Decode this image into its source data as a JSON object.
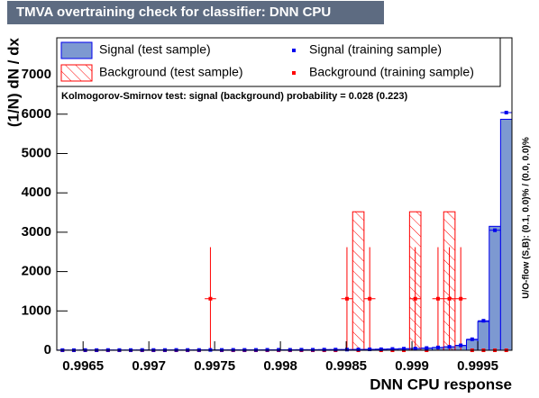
{
  "chart_data": {
    "type": "histogram",
    "title": "TMVA overtraining check for classifier: DNN CPU",
    "xlabel": "DNN CPU response",
    "ylabel": "(1/N) dN / dx",
    "annotation": "Kolmogorov-Smirnov test: signal (background) probability = 0.028 (0.223)",
    "side_note": "U/O-flow (S,B): (0.1, 0.0)% / (0.0, 0.0)%",
    "xlim": [
      0.9963,
      0.99976
    ],
    "ylim": [
      0,
      7940
    ],
    "xticks": [
      0.9965,
      0.997,
      0.9975,
      0.998,
      0.9985,
      0.999,
      0.9995
    ],
    "yticks": [
      0,
      1000,
      2000,
      3000,
      4000,
      5000,
      6000,
      7000
    ],
    "bins": [
      0.9963,
      0.9963865,
      0.996473,
      0.9965595,
      0.996646,
      0.9967325,
      0.996819,
      0.9969055,
      0.996992,
      0.9970785,
      0.997165,
      0.9972515,
      0.997338,
      0.9974245,
      0.997511,
      0.9975975,
      0.997684,
      0.9977705,
      0.997857,
      0.9979435,
      0.99803,
      0.9981165,
      0.998203,
      0.9982895,
      0.998376,
      0.9984625,
      0.998549,
      0.9986355,
      0.998722,
      0.9988085,
      0.998895,
      0.9989815,
      0.999068,
      0.9991545,
      0.999241,
      0.9993275,
      0.999414,
      0.9995005,
      0.999587,
      0.9996735,
      0.99976
    ],
    "series": [
      {
        "name": "Signal (test sample)",
        "style": "filled",
        "color": "#7d99d1",
        "line_color": "#0000ee",
        "values": [
          3,
          4,
          4,
          5,
          5,
          5,
          6,
          6,
          6,
          7,
          7,
          7,
          8,
          8,
          8,
          9,
          9,
          10,
          10,
          11,
          12,
          13,
          14,
          15,
          16,
          18,
          20,
          23,
          27,
          32,
          38,
          45,
          55,
          70,
          90,
          120,
          270,
          730,
          3150,
          5870
        ]
      },
      {
        "name": "Background (test sample)",
        "style": "hatched",
        "color": "#ff0000",
        "values": [
          0,
          0,
          0,
          0,
          0,
          0,
          0,
          0,
          0,
          0,
          0,
          0,
          0,
          0,
          0,
          0,
          0,
          0,
          0,
          0,
          0,
          0,
          0,
          0,
          0,
          0,
          3520,
          0,
          0,
          0,
          0,
          3520,
          0,
          0,
          3520,
          0,
          0,
          0,
          0,
          0
        ]
      },
      {
        "name": "Background (training sample)",
        "style": "markers",
        "color": "#ff0000",
        "values": [
          0,
          0,
          0,
          0,
          0,
          0,
          0,
          0,
          0,
          0,
          0,
          0,
          0,
          1310,
          0,
          0,
          0,
          0,
          0,
          0,
          0,
          0,
          0,
          0,
          0,
          1310,
          0,
          1310,
          0,
          0,
          0,
          1310,
          0,
          1310,
          1310,
          1310,
          0,
          0,
          0,
          0
        ],
        "errors": [
          0,
          0,
          0,
          0,
          0,
          0,
          0,
          0,
          0,
          0,
          0,
          0,
          0,
          1310,
          0,
          0,
          0,
          0,
          0,
          0,
          0,
          0,
          0,
          0,
          0,
          1310,
          0,
          1310,
          0,
          0,
          0,
          1310,
          0,
          1310,
          1310,
          1310,
          0,
          0,
          0,
          0
        ]
      },
      {
        "name": "Signal (training sample)",
        "style": "markers",
        "color": "#0000ee",
        "values": [
          4,
          3,
          5,
          4,
          6,
          5,
          5,
          7,
          6,
          6,
          8,
          7,
          7,
          9,
          8,
          10,
          9,
          9,
          11,
          12,
          11,
          14,
          13,
          16,
          17,
          17,
          21,
          24,
          26,
          33,
          40,
          44,
          57,
          72,
          88,
          125,
          280,
          750,
          3050,
          6040
        ]
      }
    ]
  }
}
